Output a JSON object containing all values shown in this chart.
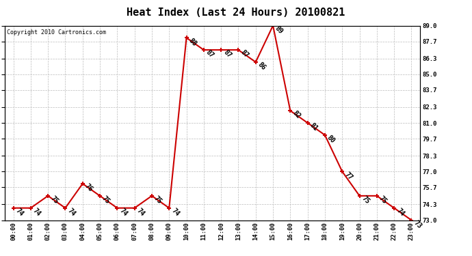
{
  "title": "Heat Index (Last 24 Hours) 20100821",
  "copyright": "Copyright 2010 Cartronics.com",
  "hours": [
    "00:00",
    "01:00",
    "02:00",
    "03:00",
    "04:00",
    "05:00",
    "06:00",
    "07:00",
    "08:00",
    "09:00",
    "10:00",
    "11:00",
    "12:00",
    "13:00",
    "14:00",
    "15:00",
    "16:00",
    "17:00",
    "18:00",
    "19:00",
    "20:00",
    "21:00",
    "22:00",
    "23:00"
  ],
  "values": [
    74,
    74,
    75,
    74,
    76,
    75,
    74,
    74,
    75,
    74,
    88,
    87,
    87,
    87,
    86,
    89,
    82,
    81,
    80,
    77,
    75,
    75,
    74,
    73
  ],
  "ylim": [
    73.0,
    89.0
  ],
  "yticks": [
    73.0,
    74.3,
    75.7,
    77.0,
    78.3,
    79.7,
    81.0,
    82.3,
    83.7,
    85.0,
    86.3,
    87.7,
    89.0
  ],
  "line_color": "#cc0000",
  "marker_color": "#cc0000",
  "bg_color": "#ffffff",
  "grid_color": "#bbbbbb",
  "title_fontsize": 11,
  "copyright_fontsize": 6,
  "label_fontsize": 7,
  "tick_fontsize": 6.5
}
